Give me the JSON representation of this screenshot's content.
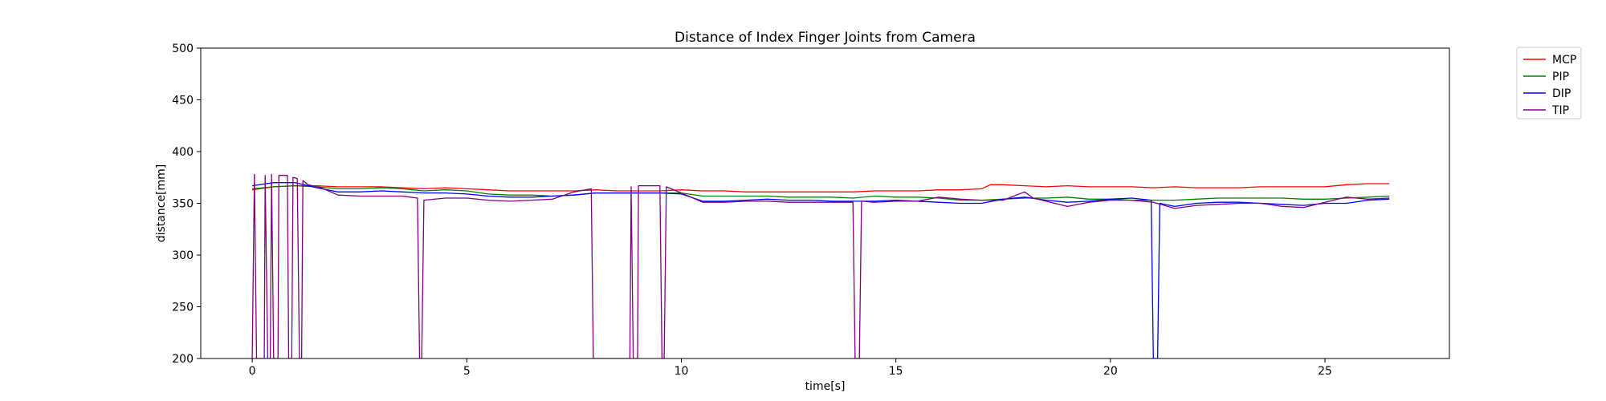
{
  "chart_data": {
    "type": "line",
    "title": "Distance of Index Finger Joints from Camera",
    "xlabel": "time[s]",
    "ylabel": "distance[mm]",
    "xlim": [
      -1.2,
      27.9
    ],
    "ylim": [
      200,
      500
    ],
    "x_ticks": [
      0,
      5,
      10,
      15,
      20,
      25
    ],
    "y_ticks": [
      200,
      250,
      300,
      350,
      400,
      450,
      500
    ],
    "grid": false,
    "legend": "outside-top-right",
    "series": [
      {
        "name": "MCP",
        "color": "#ff0000",
        "points": [
          [
            0,
            363
          ],
          [
            0.5,
            366
          ],
          [
            1,
            367
          ],
          [
            1.5,
            367
          ],
          [
            2,
            366
          ],
          [
            2.5,
            366
          ],
          [
            3,
            366
          ],
          [
            3.5,
            365
          ],
          [
            4,
            364
          ],
          [
            4.5,
            365
          ],
          [
            5,
            364
          ],
          [
            5.5,
            363
          ],
          [
            6,
            362
          ],
          [
            6.5,
            362
          ],
          [
            7,
            362
          ],
          [
            7.5,
            362
          ],
          [
            8,
            363
          ],
          [
            8.5,
            362
          ],
          [
            9,
            362
          ],
          [
            9.5,
            362
          ],
          [
            10,
            363
          ],
          [
            10.5,
            362
          ],
          [
            11,
            362
          ],
          [
            11.5,
            361
          ],
          [
            12,
            361
          ],
          [
            12.5,
            361
          ],
          [
            13,
            361
          ],
          [
            13.5,
            361
          ],
          [
            14,
            361
          ],
          [
            14.5,
            362
          ],
          [
            15,
            362
          ],
          [
            15.5,
            362
          ],
          [
            16,
            363
          ],
          [
            16.5,
            363
          ],
          [
            17,
            364
          ],
          [
            17.2,
            368
          ],
          [
            17.5,
            368
          ],
          [
            18,
            367
          ],
          [
            18.5,
            366
          ],
          [
            19,
            367
          ],
          [
            19.5,
            366
          ],
          [
            20,
            366
          ],
          [
            20.5,
            366
          ],
          [
            21,
            365
          ],
          [
            21.5,
            366
          ],
          [
            22,
            365
          ],
          [
            22.5,
            365
          ],
          [
            23,
            365
          ],
          [
            23.5,
            366
          ],
          [
            24,
            366
          ],
          [
            24.5,
            366
          ],
          [
            25,
            366
          ],
          [
            25.5,
            368
          ],
          [
            26,
            369
          ],
          [
            26.5,
            369
          ]
        ]
      },
      {
        "name": "PIP",
        "color": "#008000",
        "points": [
          [
            0,
            364
          ],
          [
            0.5,
            366
          ],
          [
            1,
            367
          ],
          [
            1.5,
            366
          ],
          [
            2,
            364
          ],
          [
            2.5,
            364
          ],
          [
            3,
            365
          ],
          [
            3.5,
            364
          ],
          [
            4,
            362
          ],
          [
            4.5,
            363
          ],
          [
            5,
            362
          ],
          [
            5.5,
            359
          ],
          [
            6,
            358
          ],
          [
            6.5,
            358
          ],
          [
            7,
            357
          ],
          [
            7.5,
            358
          ],
          [
            8,
            360
          ],
          [
            8.5,
            360
          ],
          [
            9,
            360
          ],
          [
            9.5,
            360
          ],
          [
            10,
            360
          ],
          [
            10.5,
            357
          ],
          [
            11,
            357
          ],
          [
            11.5,
            357
          ],
          [
            12,
            357
          ],
          [
            12.5,
            356
          ],
          [
            13,
            356
          ],
          [
            13.5,
            356
          ],
          [
            14,
            355
          ],
          [
            14.5,
            357
          ],
          [
            15,
            356
          ],
          [
            15.5,
            356
          ],
          [
            16,
            355
          ],
          [
            16.5,
            353
          ],
          [
            17,
            353
          ],
          [
            17.5,
            354
          ],
          [
            18,
            355
          ],
          [
            18.5,
            355
          ],
          [
            19,
            356
          ],
          [
            19.5,
            354
          ],
          [
            20,
            354
          ],
          [
            20.5,
            353
          ],
          [
            21,
            353
          ],
          [
            21.5,
            353
          ],
          [
            22,
            354
          ],
          [
            22.5,
            355
          ],
          [
            23,
            355
          ],
          [
            23.5,
            355
          ],
          [
            24,
            355
          ],
          [
            24.5,
            354
          ],
          [
            25,
            354
          ],
          [
            25.5,
            355
          ],
          [
            26,
            356
          ],
          [
            26.5,
            357
          ]
        ]
      },
      {
        "name": "DIP",
        "color": "#0000ff",
        "points": [
          [
            0,
            367
          ],
          [
            0.5,
            370
          ],
          [
            1,
            370
          ],
          [
            1.5,
            365
          ],
          [
            2,
            361
          ],
          [
            2.5,
            361
          ],
          [
            3,
            362
          ],
          [
            3.5,
            361
          ],
          [
            4,
            360
          ],
          [
            4.5,
            360
          ],
          [
            5,
            359
          ],
          [
            5.5,
            357
          ],
          [
            6,
            356
          ],
          [
            6.5,
            356
          ],
          [
            7,
            357
          ],
          [
            7.5,
            358
          ],
          [
            8,
            360
          ],
          [
            8.5,
            360
          ],
          [
            9,
            360
          ],
          [
            9.5,
            360
          ],
          [
            10,
            359
          ],
          [
            10.5,
            352
          ],
          [
            11,
            352
          ],
          [
            11.5,
            353
          ],
          [
            12,
            354
          ],
          [
            12.5,
            353
          ],
          [
            13,
            353
          ],
          [
            13.5,
            352
          ],
          [
            14,
            352
          ],
          [
            14.5,
            352
          ],
          [
            15,
            353
          ],
          [
            15.5,
            352
          ],
          [
            16,
            351
          ],
          [
            16.5,
            350
          ],
          [
            17,
            350
          ],
          [
            17.5,
            354
          ],
          [
            18,
            356
          ],
          [
            18.5,
            353
          ],
          [
            19,
            351
          ],
          [
            19.5,
            352
          ],
          [
            20,
            354
          ],
          [
            20.5,
            355
          ],
          [
            20.95,
            353
          ],
          [
            21,
            200
          ],
          [
            21.1,
            200
          ],
          [
            21.15,
            350
          ],
          [
            21.5,
            347
          ],
          [
            22,
            350
          ],
          [
            22.5,
            351
          ],
          [
            23,
            351
          ],
          [
            23.5,
            350
          ],
          [
            24,
            349
          ],
          [
            24.5,
            348
          ],
          [
            25,
            350
          ],
          [
            25.5,
            350
          ],
          [
            26,
            353
          ],
          [
            26.5,
            354
          ]
        ]
      },
      {
        "name": "TIP",
        "color": "#800080",
        "points": [
          [
            0,
            200
          ],
          [
            0.05,
            378
          ],
          [
            0.1,
            200
          ],
          [
            0.28,
            200
          ],
          [
            0.3,
            377
          ],
          [
            0.36,
            200
          ],
          [
            0.42,
            200
          ],
          [
            0.45,
            378
          ],
          [
            0.5,
            200
          ],
          [
            0.6,
            200
          ],
          [
            0.62,
            377
          ],
          [
            0.7,
            377
          ],
          [
            0.82,
            377
          ],
          [
            0.85,
            200
          ],
          [
            0.92,
            200
          ],
          [
            0.95,
            375
          ],
          [
            1.05,
            374
          ],
          [
            1.1,
            200
          ],
          [
            1.15,
            200
          ],
          [
            1.18,
            372
          ],
          [
            1.3,
            368
          ],
          [
            1.6,
            365
          ],
          [
            2,
            358
          ],
          [
            2.5,
            357
          ],
          [
            3,
            357
          ],
          [
            3.5,
            357
          ],
          [
            3.85,
            355
          ],
          [
            3.9,
            200
          ],
          [
            3.95,
            200
          ],
          [
            4.0,
            353
          ],
          [
            4.5,
            355
          ],
          [
            5,
            355
          ],
          [
            5.5,
            353
          ],
          [
            6,
            352
          ],
          [
            6.5,
            353
          ],
          [
            7,
            354
          ],
          [
            7.5,
            361
          ],
          [
            7.9,
            364
          ],
          [
            7.95,
            200
          ],
          [
            8.8,
            200
          ],
          [
            8.83,
            366
          ],
          [
            8.88,
            200
          ],
          [
            8.98,
            200
          ],
          [
            9.0,
            367
          ],
          [
            9.5,
            367
          ],
          [
            9.55,
            200
          ],
          [
            9.6,
            200
          ],
          [
            9.65,
            366
          ],
          [
            10,
            360
          ],
          [
            10.5,
            351
          ],
          [
            11,
            351
          ],
          [
            11.5,
            352
          ],
          [
            12,
            352
          ],
          [
            12.5,
            351
          ],
          [
            13,
            351
          ],
          [
            13.5,
            351
          ],
          [
            14.0,
            351
          ],
          [
            14.05,
            200
          ],
          [
            14.15,
            200
          ],
          [
            14.2,
            352
          ],
          [
            14.5,
            351
          ],
          [
            15,
            352
          ],
          [
            15.5,
            352
          ],
          [
            16,
            356
          ],
          [
            16.5,
            354
          ],
          [
            17,
            353
          ],
          [
            17.5,
            353
          ],
          [
            18,
            361
          ],
          [
            18.2,
            355
          ],
          [
            18.5,
            352
          ],
          [
            19,
            347
          ],
          [
            19.5,
            351
          ],
          [
            20,
            353
          ],
          [
            20.5,
            353
          ],
          [
            21,
            351
          ],
          [
            21.5,
            345
          ],
          [
            22,
            348
          ],
          [
            22.5,
            349
          ],
          [
            23,
            350
          ],
          [
            23.5,
            350
          ],
          [
            24,
            347
          ],
          [
            24.5,
            346
          ],
          [
            25,
            351
          ],
          [
            25.5,
            356
          ],
          [
            26,
            354
          ],
          [
            26.5,
            355
          ]
        ]
      }
    ]
  }
}
